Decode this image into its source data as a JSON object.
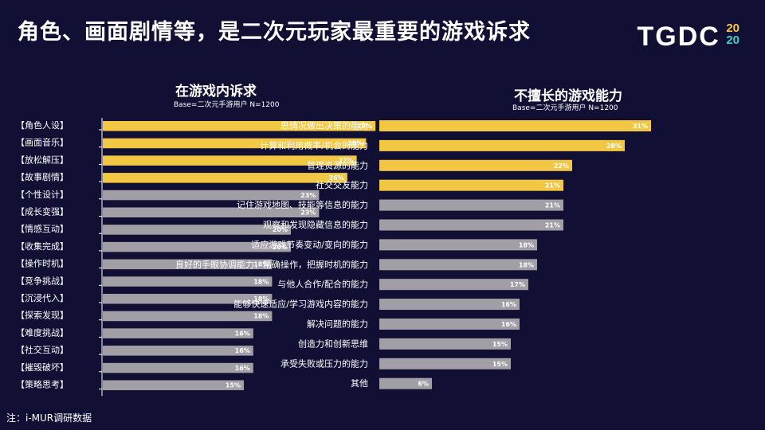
{
  "title": "角色、画面剧情等，是二次元玩家最重要的游戏诉求",
  "logo": {
    "main": "TGDC",
    "year_top": "20",
    "year_bottom": "20"
  },
  "note": "注：i-MUR调研数据",
  "colors": {
    "highlight": "#f2c744",
    "normal": "#a19fa5",
    "background": "#120f35"
  },
  "chart_data": [
    {
      "type": "bar",
      "orientation": "horizontal",
      "title": "在游戏内诉求",
      "subtitle": "Base=二次元手游用户 N=1200",
      "categories": [
        "【角色人设】",
        "【画面音乐】",
        "【放松解压】",
        "【故事剧情】",
        "【个性设计】",
        "【成长变强】",
        "【情感互动】",
        "【收集完成】",
        "【操作时机】",
        "【竞争挑战】",
        "【沉浸代入】",
        "【探索发现】",
        "【难度挑战】",
        "【社交互动】",
        "【摧毁破坏】",
        "【策略思考】"
      ],
      "values": [
        29,
        28,
        27,
        26,
        23,
        23,
        20,
        20,
        18,
        18,
        18,
        18,
        16,
        16,
        16,
        15
      ],
      "highlighted": [
        true,
        true,
        true,
        true,
        false,
        false,
        false,
        false,
        false,
        false,
        false,
        false,
        false,
        false,
        false,
        false
      ],
      "value_suffix": "%",
      "xlim": [
        0,
        30
      ]
    },
    {
      "type": "bar",
      "orientation": "horizontal",
      "title": "不擅长的游戏能力",
      "subtitle": "Base=二次元手游用户 N=1200",
      "categories": [
        "思情况做出决策的能力",
        "计算和利用概率/机会的能力",
        "管理资源的能力",
        "社交交友能力",
        "记住游戏地图、技能等信息的能力",
        "观察和发现隐藏信息的能力",
        "适应游戏节奏变动/变向的能力",
        "良好的手眼协调能力，精确操作，把握时机的能力",
        "与他人合作/配合的能力",
        "能够快速适应/学习游戏内容的能力",
        "解决问题的能力",
        "创造力和创新思维",
        "承受失败或压力的能力",
        "其他"
      ],
      "values": [
        31,
        28,
        22,
        21,
        21,
        21,
        18,
        18,
        17,
        16,
        16,
        15,
        15,
        6
      ],
      "highlighted": [
        true,
        true,
        true,
        true,
        false,
        false,
        false,
        false,
        false,
        false,
        false,
        false,
        false,
        false
      ],
      "value_suffix": "%",
      "xlim": [
        0,
        32
      ]
    }
  ]
}
